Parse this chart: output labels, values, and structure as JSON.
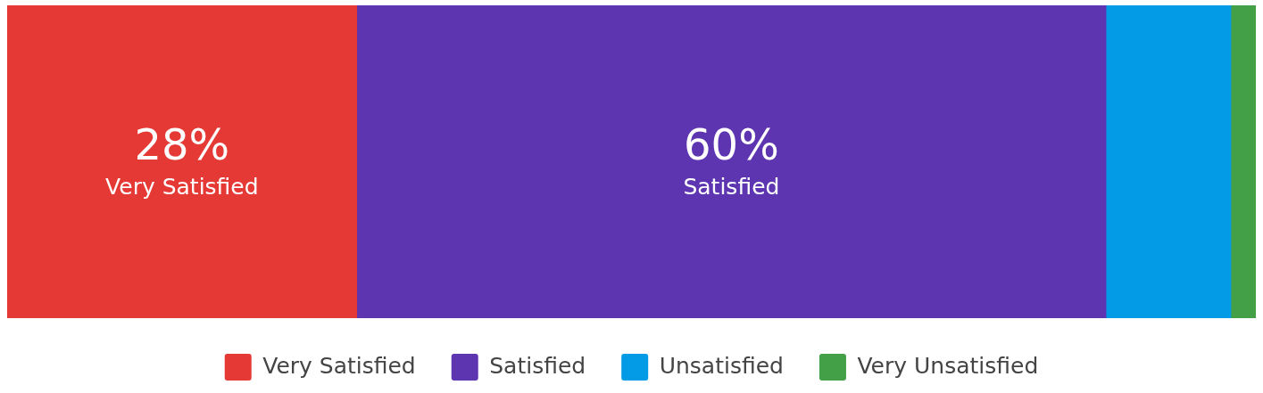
{
  "chart_data": {
    "type": "bar",
    "orientation": "horizontal",
    "stacked": true,
    "categories": [
      null
    ],
    "xlim": [
      0,
      100
    ],
    "tick_labels": false,
    "legend": "bottom",
    "series": [
      {
        "name": "Very Satisfied",
        "color": "#e53935",
        "values": [
          28
        ],
        "value_labels": [
          "28%"
        ]
      },
      {
        "name": "Satisfied",
        "color": "#5e35b1",
        "values": [
          60
        ],
        "value_labels": [
          "60%"
        ]
      },
      {
        "name": "Unsatisfied",
        "color": "#039be5",
        "values": [
          10
        ],
        "value_labels": [
          null
        ]
      },
      {
        "name": "Very Unsatisfied",
        "color": "#43a047",
        "values": [
          2
        ],
        "value_labels": [
          null
        ]
      }
    ]
  }
}
